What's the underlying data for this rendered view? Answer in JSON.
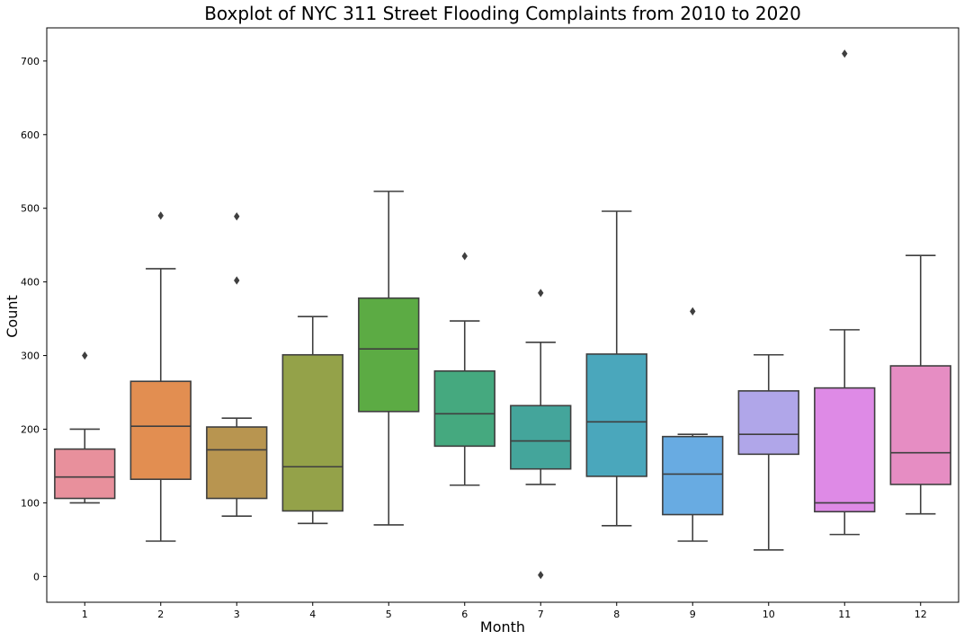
{
  "chart_data": {
    "type": "boxplot",
    "title": "Boxplot of NYC 311 Street Flooding Complaints from 2010 to 2020",
    "xlabel": "Month",
    "ylabel": "Count",
    "ylim": [
      -35,
      745
    ],
    "yticks": [
      0,
      100,
      200,
      300,
      400,
      500,
      600,
      700
    ],
    "grid": false,
    "categories": [
      "1",
      "2",
      "3",
      "4",
      "5",
      "6",
      "7",
      "8",
      "9",
      "10",
      "11",
      "12"
    ],
    "boxes": [
      {
        "category": "1",
        "whisker_low": 100,
        "q1": 106,
        "median": 135,
        "q3": 173,
        "whisker_high": 200,
        "outliers": [
          300
        ],
        "color": "#e8909c"
      },
      {
        "category": "2",
        "whisker_low": 48,
        "q1": 132,
        "median": 204,
        "q3": 265,
        "whisker_high": 418,
        "outliers": [
          490
        ],
        "color": "#e28e51"
      },
      {
        "category": "3",
        "whisker_low": 82,
        "q1": 106,
        "median": 172,
        "q3": 203,
        "whisker_high": 215,
        "outliers": [
          402,
          489
        ],
        "color": "#b89550"
      },
      {
        "category": "4",
        "whisker_low": 72,
        "q1": 89,
        "median": 149,
        "q3": 301,
        "whisker_high": 353,
        "outliers": [],
        "color": "#94a249"
      },
      {
        "category": "5",
        "whisker_low": 70,
        "q1": 224,
        "median": 309,
        "q3": 378,
        "whisker_high": 523,
        "outliers": [],
        "color": "#5cab44"
      },
      {
        "category": "6",
        "whisker_low": 124,
        "q1": 177,
        "median": 221,
        "q3": 279,
        "whisker_high": 347,
        "outliers": [
          435
        ],
        "color": "#45a97f"
      },
      {
        "category": "7",
        "whisker_low": 125,
        "q1": 146,
        "median": 184,
        "q3": 232,
        "whisker_high": 318,
        "outliers": [
          385,
          2
        ],
        "color": "#44a59b"
      },
      {
        "category": "8",
        "whisker_low": 69,
        "q1": 136,
        "median": 210,
        "q3": 302,
        "whisker_high": 496,
        "outliers": [],
        "color": "#4aa7bc"
      },
      {
        "category": "9",
        "whisker_low": 48,
        "q1": 84,
        "median": 139,
        "q3": 190,
        "whisker_high": 193,
        "outliers": [
          360
        ],
        "color": "#68abe2"
      },
      {
        "category": "10",
        "whisker_low": 36,
        "q1": 166,
        "median": 193,
        "q3": 252,
        "whisker_high": 301,
        "outliers": [],
        "color": "#b0a6e9"
      },
      {
        "category": "11",
        "whisker_low": 57,
        "q1": 88,
        "median": 100,
        "q3": 256,
        "whisker_high": 335,
        "outliers": [
          710
        ],
        "color": "#de8ae6"
      },
      {
        "category": "12",
        "whisker_low": 85,
        "q1": 125,
        "median": 168,
        "q3": 286,
        "whisker_high": 436,
        "outliers": [],
        "color": "#e68dc3"
      }
    ]
  },
  "colors": {
    "box_edge": "#3f3f3f",
    "outlier": "#3f3f3f",
    "frame": "#000000"
  }
}
